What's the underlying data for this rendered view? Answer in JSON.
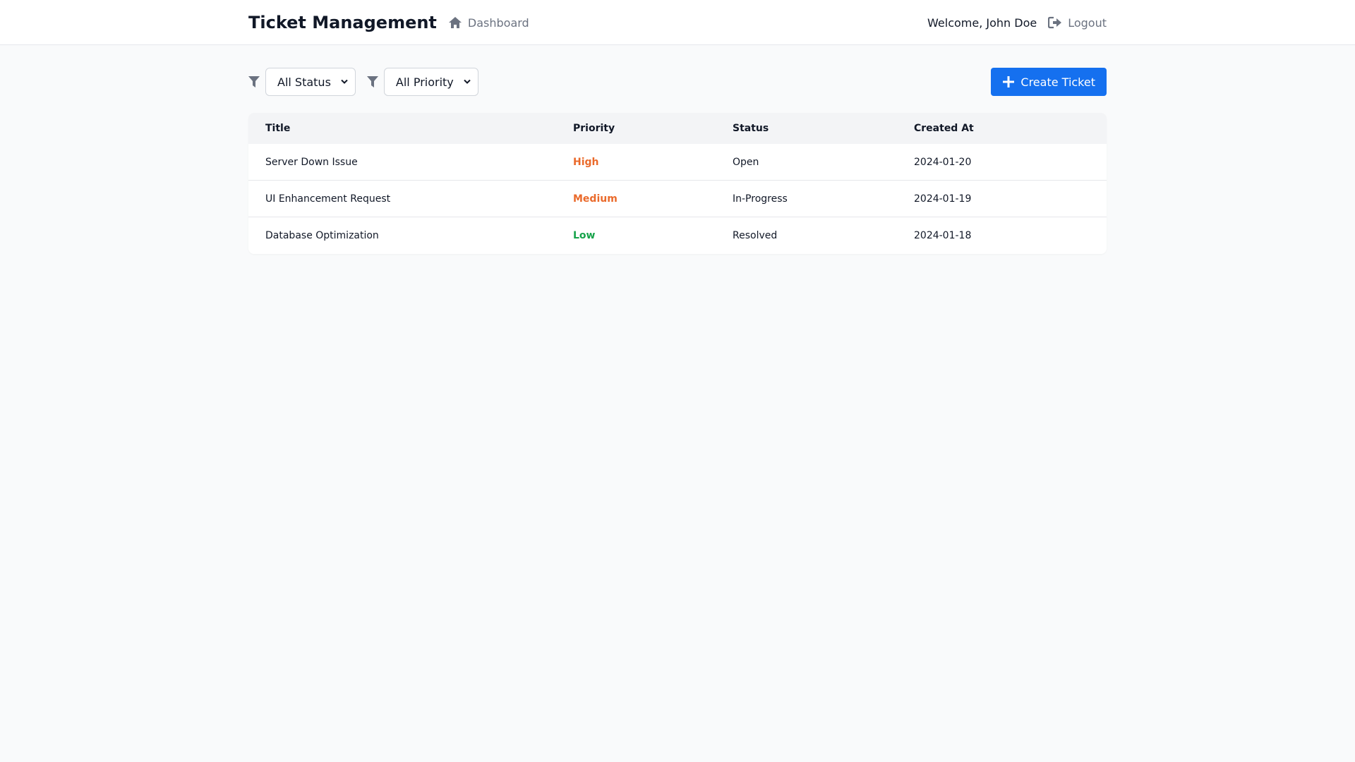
{
  "header": {
    "title": "Ticket Management",
    "nav": {
      "dashboard_label": "Dashboard",
      "icon": "home-icon"
    },
    "welcome": "Welcome, John Doe",
    "logout_label": "Logout",
    "logout_icon": "sign-out-icon"
  },
  "toolbar": {
    "status_filter": {
      "selected": "All Status",
      "icon": "filter-icon"
    },
    "priority_filter": {
      "selected": "All Priority",
      "icon": "filter-icon"
    },
    "create_label": "Create Ticket",
    "create_icon": "plus-icon"
  },
  "table": {
    "columns": [
      "Title",
      "Priority",
      "Status",
      "Created At"
    ],
    "rows": [
      {
        "title": "Server Down Issue",
        "priority": "High",
        "status": "Open",
        "created_at": "2024-01-20"
      },
      {
        "title": "UI Enhancement Request",
        "priority": "Medium",
        "status": "In-Progress",
        "created_at": "2024-01-19"
      },
      {
        "title": "Database Optimization",
        "priority": "Low",
        "status": "Resolved",
        "created_at": "2024-01-18"
      }
    ]
  },
  "colors": {
    "accent": "#1570ef",
    "priority_high": "#ea6a2b",
    "priority_medium": "#ea6a2b",
    "priority_low": "#16a34a"
  }
}
